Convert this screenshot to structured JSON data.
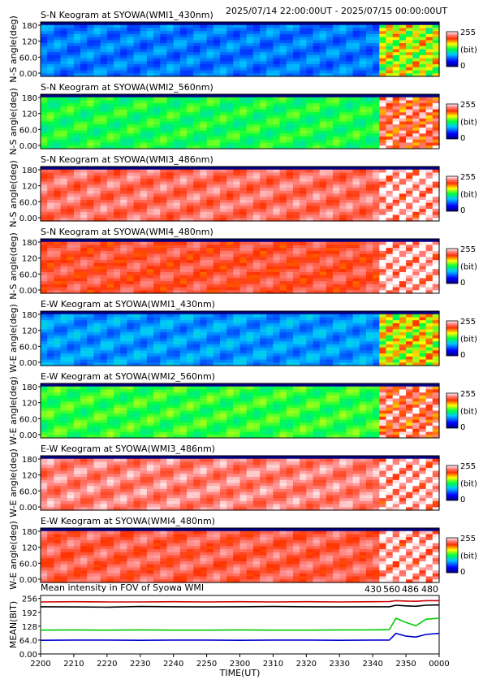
{
  "chart_data": [
    {
      "type": "heatmap",
      "title": "S-N Keogram at SYOWA(WMI1_430nm)",
      "ylabel": "N-S angle(deg)",
      "yticks": [
        "180",
        "120",
        "60.0",
        "0.00"
      ],
      "colorbar": {
        "min_label": "0",
        "max_label": "255",
        "unit": "(bit)"
      },
      "base_level": 0.27,
      "late_level": 0.62,
      "colormap": "rainbow",
      "ylim": [
        0,
        180
      ]
    },
    {
      "type": "heatmap",
      "title": "S-N Keogram at SYOWA(WMI2_560nm)",
      "ylabel": "N-S angle(deg)",
      "yticks": [
        "180",
        "120",
        "60.0",
        "0.00"
      ],
      "colorbar": {
        "min_label": "0",
        "max_label": "255",
        "unit": "(bit)"
      },
      "base_level": 0.5,
      "late_level": 0.85,
      "colormap": "rainbow",
      "ylim": [
        0,
        180
      ]
    },
    {
      "type": "heatmap",
      "title": "S-N Keogram at SYOWA(WMI3_486nm)",
      "ylabel": "N-S angle(deg)",
      "yticks": [
        "180",
        "120",
        "60.0",
        "0.00"
      ],
      "colorbar": {
        "min_label": "0",
        "max_label": "255",
        "unit": "(bit)"
      },
      "base_level": 0.88,
      "late_level": 0.95,
      "colormap": "rainbow",
      "ylim": [
        0,
        180
      ]
    },
    {
      "type": "heatmap",
      "title": "S-N Keogram at SYOWA(WMI4_480nm)",
      "ylabel": "N-S angle(deg)",
      "yticks": [
        "180",
        "120",
        "60.0",
        "0.00"
      ],
      "colorbar": {
        "min_label": "0",
        "max_label": "255",
        "unit": "(bit)"
      },
      "base_level": 0.84,
      "late_level": 0.95,
      "colormap": "rainbow",
      "ylim": [
        0,
        180
      ]
    },
    {
      "type": "heatmap",
      "title": "E-W Keogram at SYOWA(WMI1_430nm)",
      "ylabel": "W-E angle(deg)",
      "yticks": [
        "180",
        "120",
        "60.0",
        "0.00"
      ],
      "colorbar": {
        "min_label": "0",
        "max_label": "255",
        "unit": "(bit)"
      },
      "base_level": 0.3,
      "late_level": 0.65,
      "colormap": "rainbow",
      "ylim": [
        0,
        180
      ]
    },
    {
      "type": "heatmap",
      "title": "E-W Keogram at SYOWA(WMI2_560nm)",
      "ylabel": "W-E angle(deg)",
      "yticks": [
        "180",
        "120",
        "60.0",
        "0.00"
      ],
      "colorbar": {
        "min_label": "0",
        "max_label": "255",
        "unit": "(bit)"
      },
      "base_level": 0.52,
      "late_level": 0.86,
      "colormap": "rainbow",
      "ylim": [
        0,
        180
      ]
    },
    {
      "type": "heatmap",
      "title": "E-W Keogram at SYOWA(WMI3_486nm)",
      "ylabel": "W-E angle(deg)",
      "yticks": [
        "180",
        "120",
        "60.0",
        "0.00"
      ],
      "colorbar": {
        "min_label": "0",
        "max_label": "255",
        "unit": "(bit)"
      },
      "base_level": 0.9,
      "late_level": 0.95,
      "colormap": "rainbow",
      "ylim": [
        0,
        180
      ]
    },
    {
      "type": "heatmap",
      "title": "E-W Keogram at SYOWA(WMI4_480nm)",
      "ylabel": "W-E angle(deg)",
      "yticks": [
        "180",
        "120",
        "60.0",
        "0.00"
      ],
      "colorbar": {
        "min_label": "0",
        "max_label": "255",
        "unit": "(bit)"
      },
      "base_level": 0.86,
      "late_level": 0.95,
      "colormap": "rainbow",
      "ylim": [
        0,
        180
      ]
    },
    {
      "type": "line",
      "title": "Mean intensity in FOV of Syowa WMI",
      "ylabel": "MEAN(BIT)",
      "xlabel": "TIME(UT)",
      "ylim": [
        0,
        270
      ],
      "yticks": [
        "256",
        "192",
        "128",
        "64.0",
        "0.00"
      ],
      "x": [
        "2200",
        "2210",
        "2220",
        "2230",
        "2240",
        "2250",
        "2300",
        "2310",
        "2320",
        "2330",
        "2340",
        "2345",
        "2347",
        "2350",
        "2353",
        "2356",
        "2400"
      ],
      "xticks": [
        "2200",
        "2210",
        "2220",
        "2230",
        "2240",
        "2250",
        "2300",
        "2310",
        "2320",
        "2330",
        "2340",
        "2350",
        "0000"
      ],
      "series": [
        {
          "name": "430",
          "color": "#0000cc",
          "values": [
            63,
            64,
            64,
            63,
            64,
            64,
            63,
            64,
            64,
            63,
            64,
            64,
            95,
            82,
            78,
            90,
            95
          ]
        },
        {
          "name": "560",
          "color": "#00cc00",
          "values": [
            110,
            111,
            110,
            111,
            110,
            110,
            111,
            110,
            110,
            111,
            111,
            112,
            165,
            145,
            130,
            160,
            165
          ]
        },
        {
          "name": "486",
          "color": "#cc0000",
          "values": [
            240,
            241,
            240,
            240,
            241,
            240,
            241,
            240,
            241,
            240,
            241,
            242,
            246,
            244,
            243,
            246,
            246
          ]
        },
        {
          "name": "480",
          "color": "#000000",
          "values": [
            218,
            217,
            216,
            219,
            218,
            217,
            218,
            219,
            218,
            217,
            218,
            218,
            225,
            222,
            220,
            225,
            226
          ]
        }
      ]
    }
  ],
  "header": {
    "time_range": "2025/07/14 22:00:00UT - 2025/07/15 00:00:00UT"
  }
}
